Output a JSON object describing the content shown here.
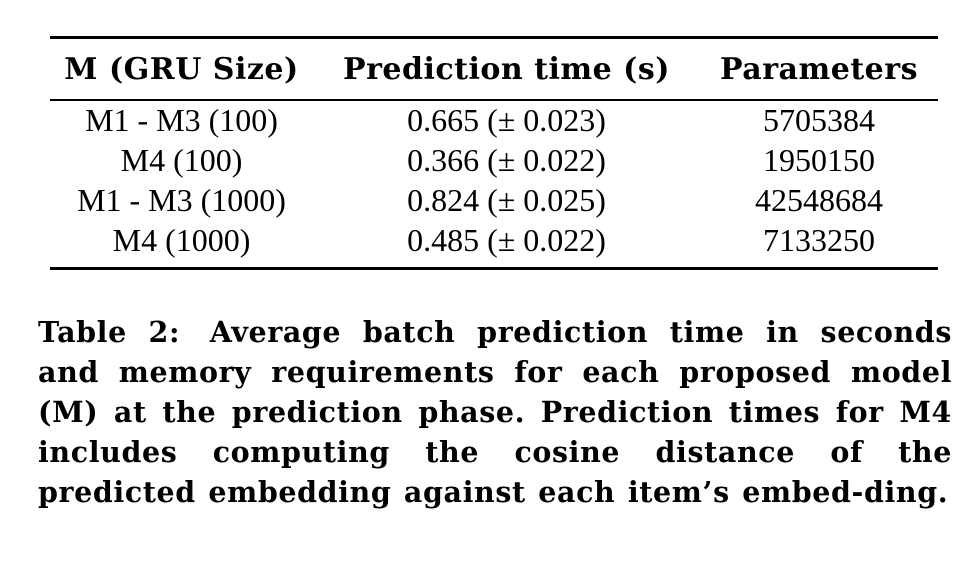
{
  "table": {
    "headers": [
      "M (GRU Size)",
      "Prediction time (s)",
      "Parameters"
    ],
    "rows": [
      [
        "M1 - M3 (100)",
        "0.665 (± 0.023)",
        "5705384"
      ],
      [
        "M4 (100)",
        "0.366 (± 0.022)",
        "1950150"
      ],
      [
        "M1 - M3 (1000)",
        "0.824 (± 0.025)",
        "42548684"
      ],
      [
        "M4 (1000)",
        "0.485 (± 0.022)",
        "7133250"
      ]
    ]
  },
  "caption": {
    "label": "Table 2:",
    "text": "Average batch prediction time in seconds and memory requirements for each proposed model (M) at the prediction phase. Prediction times for M4 includes computing the cosine distance of the predicted embedding against each item’s embed-ding."
  }
}
